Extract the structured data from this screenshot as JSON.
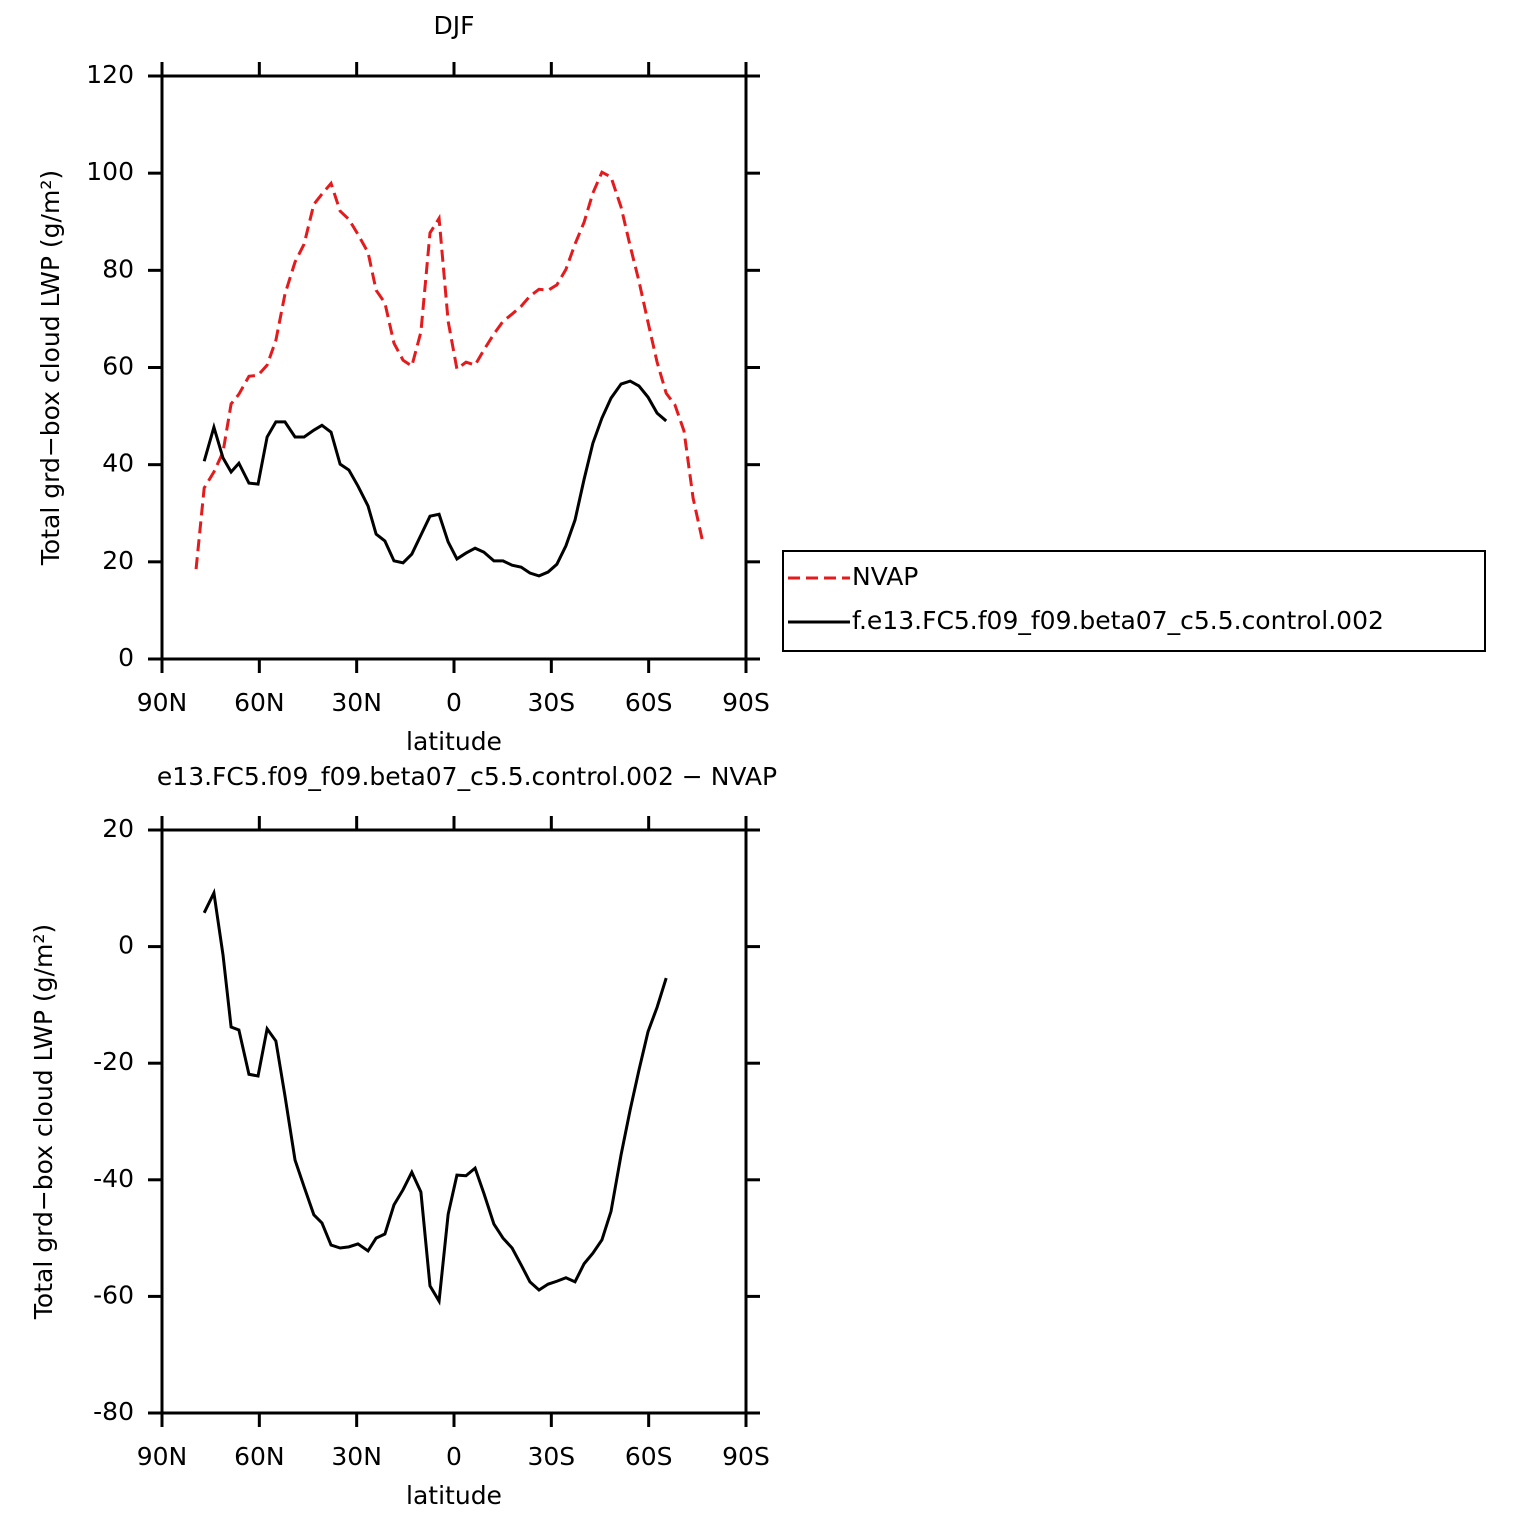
{
  "chart_data": [
    {
      "type": "line",
      "title": "DJF",
      "x_label": "latitude",
      "y_label": "Total grd−box cloud LWP (g/m²)",
      "x": [
        79.5,
        77,
        74,
        71.2,
        68.7,
        66.3,
        63.2,
        60.4,
        57.6,
        54.9,
        52.1,
        49,
        46.2,
        43.2,
        40.7,
        37.9,
        35.1,
        32.4,
        29.6,
        26.5,
        24,
        21.3,
        18.5,
        15.7,
        13,
        10.2,
        7.4,
        4.6,
        1.8,
        -0.9,
        -3.7,
        -6.5,
        -9.2,
        -12.3,
        -15.1,
        -17.9,
        -20.7,
        -23.4,
        -26.2,
        -29,
        -31.7,
        -34.5,
        -37.3,
        -40.1,
        -42.8,
        -45.6,
        -48.4,
        -51.5,
        -54.3,
        -57,
        -59.8,
        -62.6,
        -65.4,
        -68.1,
        -70.9,
        -73.7,
        -76.8
      ],
      "series": [
        {
          "name": "NVAP",
          "color": "#e41a1c",
          "style": "dashed",
          "values": [
            18.5,
            35.2,
            38.5,
            42.6,
            52.5,
            54.5,
            58.2,
            58.4,
            60.5,
            65.6,
            75.1,
            81.7,
            85.4,
            93.6,
            95.7,
            97.9,
            92.2,
            90.5,
            87.4,
            83.7,
            75.9,
            73.3,
            65,
            61.5,
            60.3,
            67.3,
            87.7,
            90.7,
            69.5,
            59.7,
            61.1,
            60.5,
            63.6,
            66.9,
            69.5,
            71,
            72.6,
            74.7,
            76.1,
            75.9,
            77,
            80.2,
            85.4,
            89.9,
            95.9,
            100.2,
            99.2,
            93,
            85,
            77.8,
            69.3,
            61.1,
            54.7,
            52.3,
            46.9,
            33.1,
            23.7
          ]
        },
        {
          "name": "f.e13.FC5.f09_f09.beta07_c5.5.control.002",
          "color": "#000000",
          "style": "solid",
          "values": [
            null,
            40.7,
            47.7,
            41.4,
            38.5,
            40.3,
            36.2,
            36,
            45.7,
            48.8,
            48.8,
            45.7,
            45.7,
            47.1,
            48.1,
            46.7,
            40.1,
            38.9,
            35.6,
            31.5,
            25.7,
            24.3,
            20.2,
            19.8,
            21.6,
            25.5,
            29.4,
            29.8,
            24.1,
            20.6,
            21.8,
            22.8,
            22,
            20.2,
            20.2,
            19.3,
            18.9,
            17.7,
            17.1,
            17.9,
            19.5,
            23.3,
            28.6,
            37,
            44.4,
            49.6,
            53.7,
            56.6,
            57.2,
            56.2,
            53.9,
            50.6,
            49,
            null,
            null,
            null,
            null
          ]
        }
      ],
      "xlim": [
        90,
        -90
      ],
      "xticks": [
        {
          "value": 90,
          "label": "90N"
        },
        {
          "value": 60,
          "label": "60N"
        },
        {
          "value": 30,
          "label": "30N"
        },
        0,
        {
          "value": -30,
          "label": "30S"
        },
        {
          "value": -60,
          "label": "60S"
        },
        {
          "value": -90,
          "label": "90S"
        }
      ],
      "ylim": [
        0,
        120
      ],
      "yticks": [
        0,
        20,
        40,
        60,
        80,
        100,
        120
      ],
      "legend": "right"
    },
    {
      "type": "line",
      "title": "e13.FC5.f09_f09.beta07_c5.5.control.002 − NVAP",
      "x_label": "latitude",
      "y_label": "Total grd−box cloud LWP (g/m²)",
      "x": [
        77,
        74,
        71.2,
        68.7,
        66.3,
        63.2,
        60.4,
        57.6,
        54.9,
        52.1,
        49,
        46.2,
        43.2,
        40.7,
        37.9,
        35.1,
        32.4,
        29.6,
        26.5,
        24,
        21.3,
        18.5,
        15.7,
        13,
        10.2,
        7.4,
        4.6,
        1.8,
        -0.9,
        -3.7,
        -6.5,
        -9.2,
        -12.3,
        -15.1,
        -17.9,
        -20.7,
        -23.4,
        -26.2,
        -29,
        -31.7,
        -34.5,
        -37.3,
        -40.1,
        -42.8,
        -45.6,
        -48.4,
        -51.5,
        -54.3,
        -57,
        -59.8,
        -62.6,
        -65.4
      ],
      "series": [
        {
          "color": "#000000",
          "style": "solid",
          "values": [
            5.8,
            9.2,
            -1.4,
            -13.8,
            -14.3,
            -21.9,
            -22.2,
            -14.1,
            -16.2,
            -25.6,
            -36.6,
            -41.2,
            -46,
            -47.4,
            -51.2,
            -51.7,
            -51.5,
            -51,
            -52.2,
            -50,
            -49.3,
            -44.3,
            -41.7,
            -38.7,
            -42.1,
            -58.2,
            -60.8,
            -45.9,
            -39.2,
            -39.3,
            -38,
            -42.3,
            -47.6,
            -50,
            -51.7,
            -54.6,
            -57.5,
            -58.9,
            -57.9,
            -57.4,
            -56.8,
            -57.5,
            -54.4,
            -52.6,
            -50.3,
            -45.4,
            -35.7,
            -28,
            -21.2,
            -14.6,
            -10.4,
            -5.4
          ]
        }
      ],
      "xlim": [
        90,
        -90
      ],
      "xticks": [
        {
          "value": 90,
          "label": "90N"
        },
        {
          "value": 60,
          "label": "60N"
        },
        {
          "value": 30,
          "label": "30N"
        },
        0,
        {
          "value": -30,
          "label": "30S"
        },
        {
          "value": -60,
          "label": "60S"
        },
        {
          "value": -90,
          "label": "90S"
        }
      ],
      "ylim": [
        -80,
        20
      ],
      "yticks": [
        -80,
        -60,
        -40,
        -20,
        0,
        20
      ]
    }
  ]
}
